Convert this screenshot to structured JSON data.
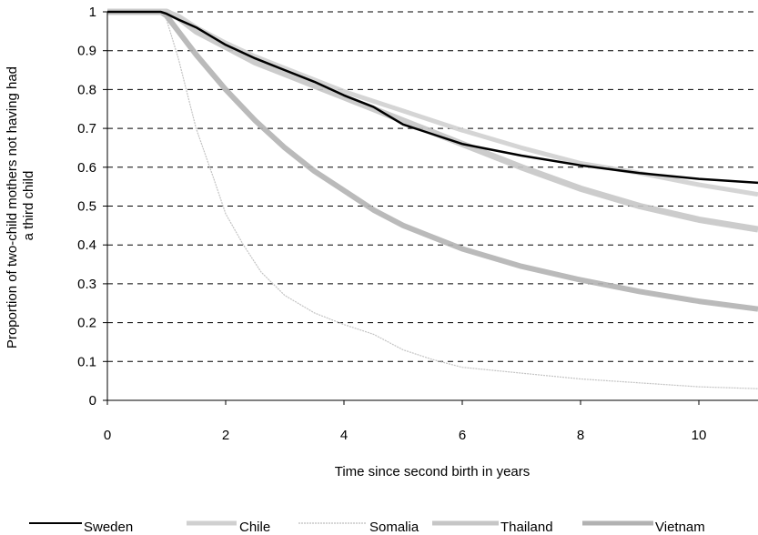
{
  "chart_data": {
    "type": "line",
    "title": "",
    "xlabel": "Time since second birth in years",
    "ylabel_lines": [
      "Proportion of two-child mothers not having had",
      "a third child"
    ],
    "xlim": [
      0,
      11
    ],
    "ylim": [
      0,
      1
    ],
    "x_ticks": [
      0,
      2,
      4,
      6,
      8,
      10
    ],
    "y_ticks": [
      0,
      0.1,
      0.2,
      0.3,
      0.4,
      0.5,
      0.6,
      0.7,
      0.8,
      0.9,
      1
    ],
    "y_tick_labels": [
      "0",
      "0.1",
      "0.2",
      "0.3",
      "0.4",
      "0.5",
      "0.6",
      "0.7",
      "0.8",
      "0.9",
      "1"
    ],
    "grid": "horizontal-dashed",
    "legend_position": "bottom",
    "series": [
      {
        "name": "Sweden",
        "color": "#000000",
        "x": [
          0,
          0.9,
          1.0,
          1.2,
          1.5,
          2.0,
          2.5,
          3.0,
          3.5,
          4.0,
          4.5,
          5.0,
          5.5,
          6.0,
          6.5,
          7.0,
          8.0,
          9.0,
          10.0,
          11.0
        ],
        "y": [
          1.0,
          1.0,
          0.995,
          0.98,
          0.96,
          0.915,
          0.88,
          0.85,
          0.82,
          0.785,
          0.755,
          0.71,
          0.685,
          0.66,
          0.645,
          0.63,
          0.605,
          0.585,
          0.57,
          0.56
        ]
      },
      {
        "name": "Chile",
        "color": "#d0d0d0",
        "x": [
          0,
          1.0,
          1.2,
          1.5,
          2.0,
          2.5,
          3.0,
          3.5,
          4.0,
          4.5,
          5.0,
          5.5,
          6.0,
          7.0,
          8.0,
          9.0,
          10.0,
          11.0
        ],
        "y": [
          1.0,
          1.0,
          0.99,
          0.96,
          0.92,
          0.885,
          0.855,
          0.825,
          0.795,
          0.77,
          0.745,
          0.72,
          0.695,
          0.65,
          0.61,
          0.585,
          0.555,
          0.53
        ]
      },
      {
        "name": "Somalia",
        "color": "#bdbdbd",
        "x": [
          0,
          0.9,
          1.0,
          1.2,
          1.5,
          1.8,
          2.0,
          2.3,
          2.6,
          3.0,
          3.5,
          4.0,
          4.5,
          5.0,
          5.5,
          6.0,
          7.0,
          8.0,
          9.0,
          10.0,
          11.0
        ],
        "y": [
          1.0,
          1.0,
          0.98,
          0.88,
          0.7,
          0.57,
          0.48,
          0.4,
          0.33,
          0.27,
          0.225,
          0.195,
          0.17,
          0.13,
          0.105,
          0.085,
          0.07,
          0.055,
          0.045,
          0.035,
          0.03
        ]
      },
      {
        "name": "Thailand",
        "color": "#c6c6c6",
        "x": [
          0,
          1.0,
          1.2,
          1.5,
          2.0,
          2.5,
          3.0,
          3.5,
          4.0,
          4.5,
          5.0,
          5.5,
          6.0,
          7.0,
          8.0,
          9.0,
          10.0,
          11.0
        ],
        "y": [
          1.0,
          1.0,
          0.985,
          0.95,
          0.91,
          0.87,
          0.84,
          0.81,
          0.78,
          0.75,
          0.72,
          0.69,
          0.66,
          0.6,
          0.545,
          0.5,
          0.465,
          0.44
        ]
      },
      {
        "name": "Vietnam",
        "color": "#b2b2b2",
        "x": [
          0,
          0.9,
          1.0,
          1.2,
          1.5,
          2.0,
          2.5,
          3.0,
          3.5,
          4.0,
          4.5,
          5.0,
          5.5,
          6.0,
          7.0,
          8.0,
          9.0,
          10.0,
          11.0
        ],
        "y": [
          1.0,
          1.0,
          0.99,
          0.95,
          0.89,
          0.8,
          0.72,
          0.65,
          0.59,
          0.54,
          0.49,
          0.45,
          0.42,
          0.39,
          0.345,
          0.31,
          0.28,
          0.255,
          0.235
        ]
      }
    ]
  }
}
